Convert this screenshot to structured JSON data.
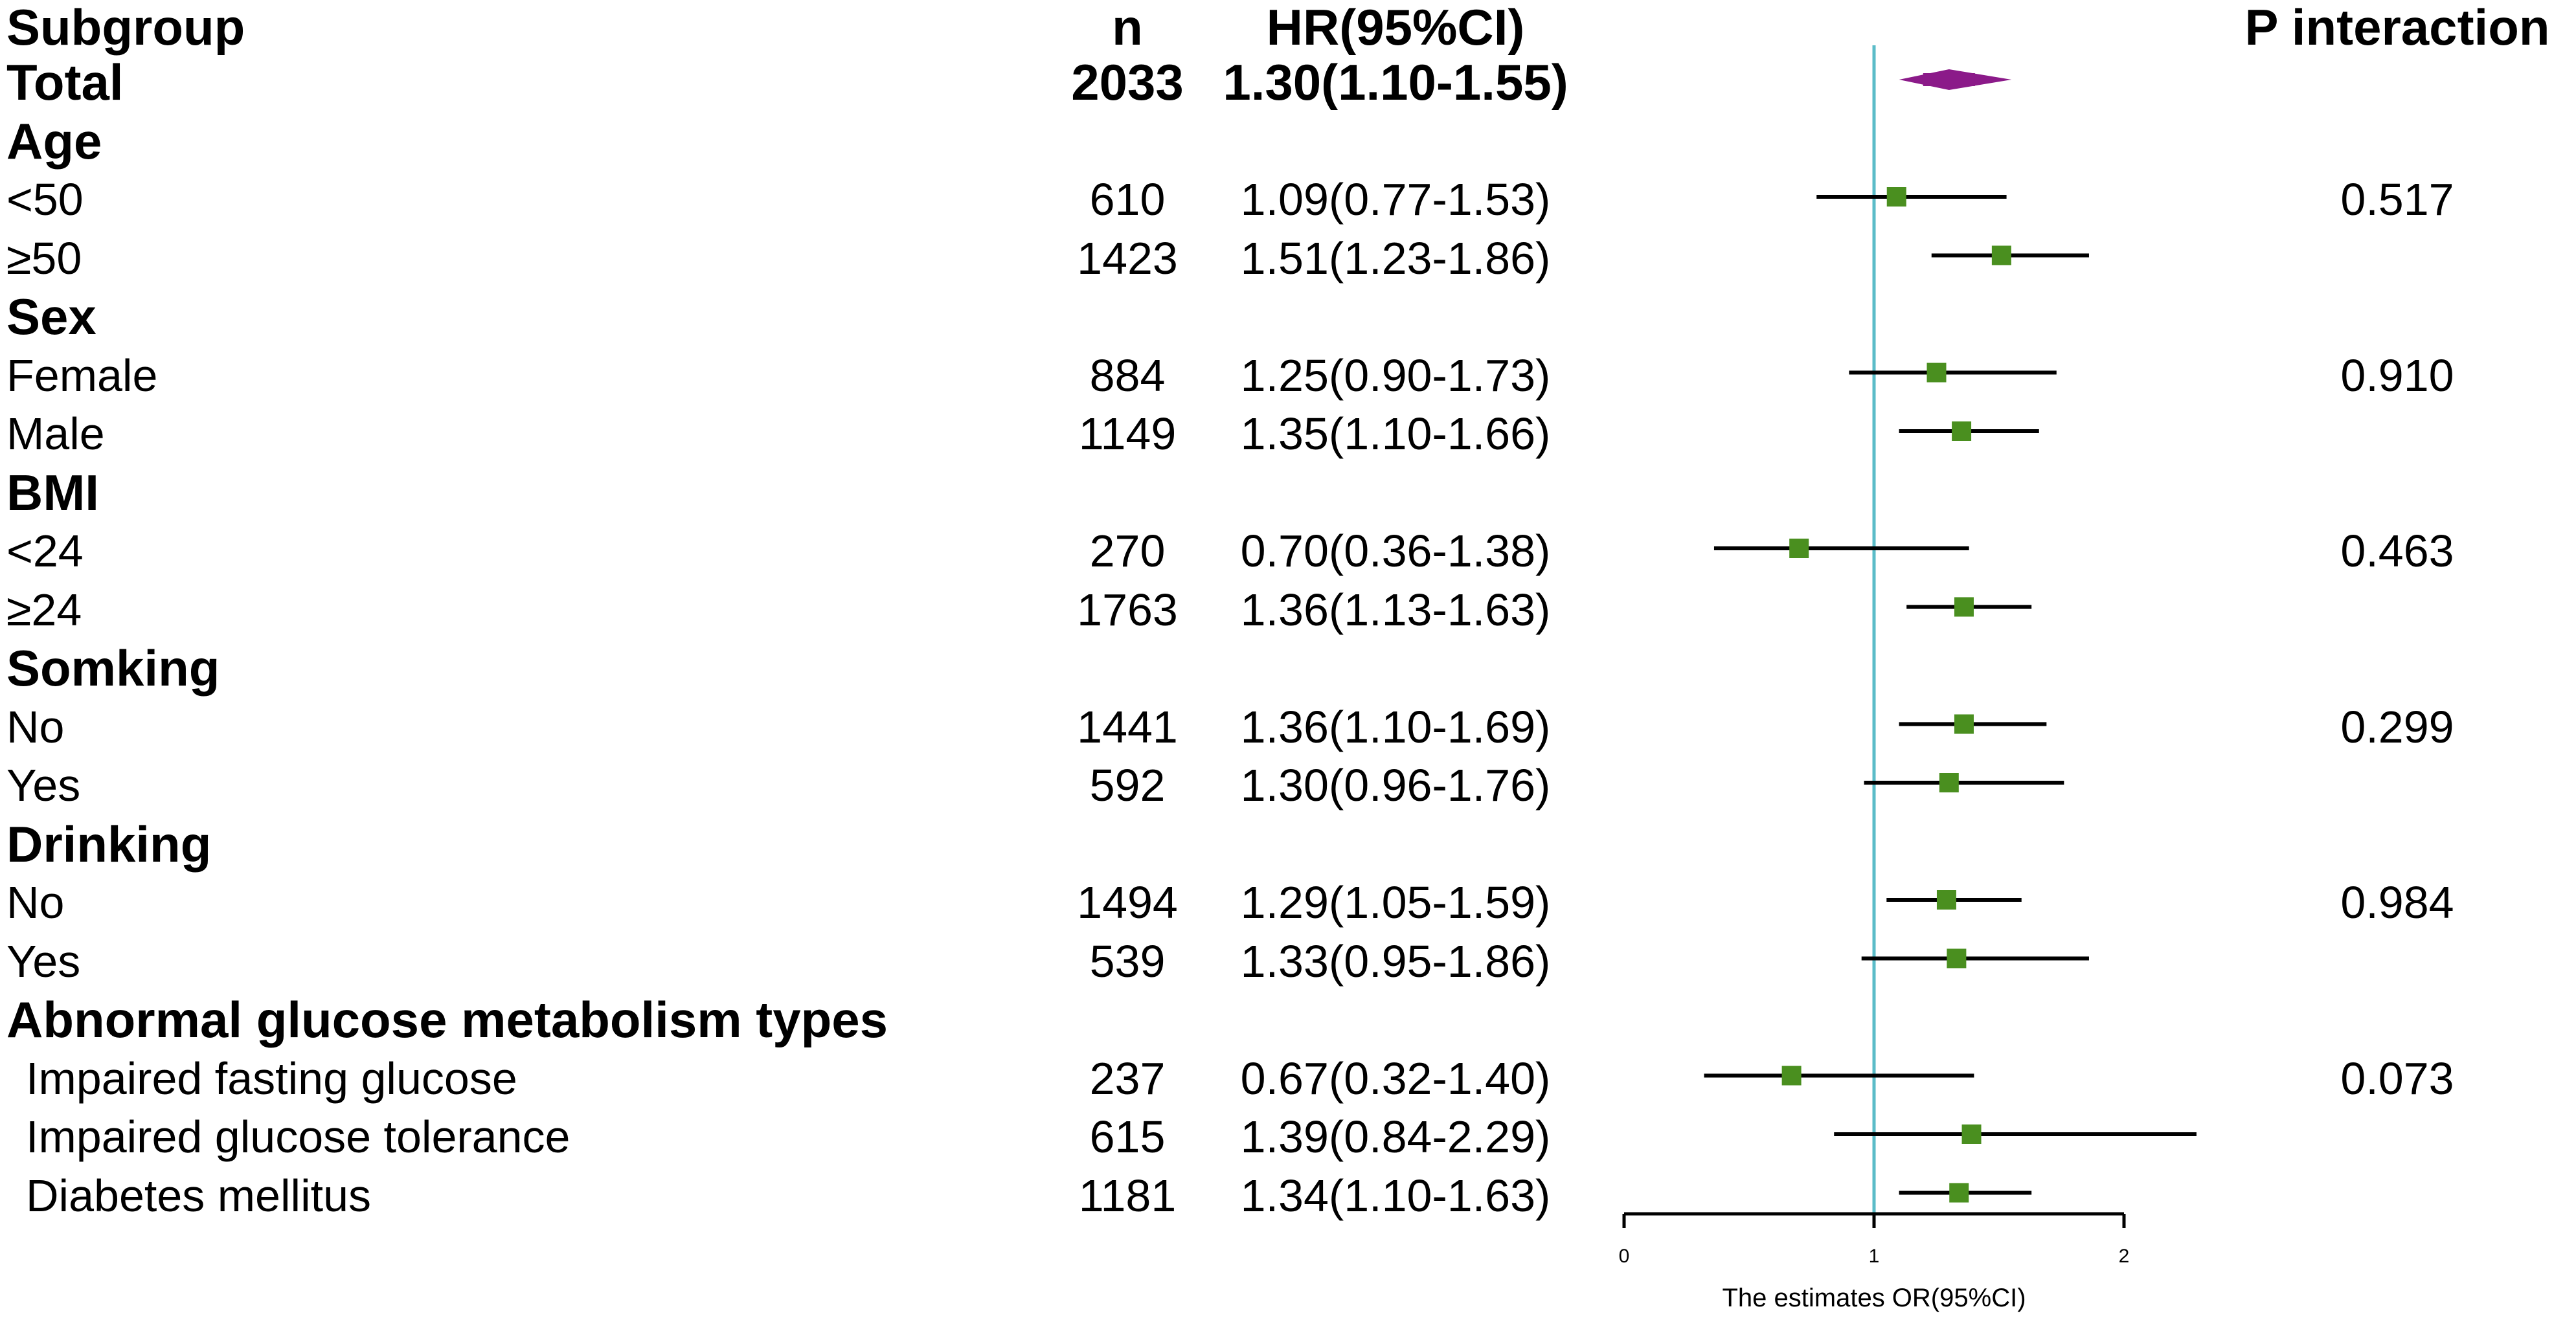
{
  "headers": {
    "subgroup": "Subgroup",
    "n": "n",
    "hr": "HR(95%CI)",
    "p": "P interaction"
  },
  "rows": [
    {
      "label": "Total",
      "kind": "total",
      "n": "2033",
      "hr_text": "1.30(1.10-1.55)",
      "est": 1.3,
      "lo": 1.1,
      "hi": 1.55,
      "p": ""
    },
    {
      "label": "Age",
      "kind": "group",
      "n": "",
      "hr_text": "",
      "p": ""
    },
    {
      "label": "<50",
      "kind": "sub",
      "n": "610",
      "hr_text": "1.09(0.77-1.53)",
      "est": 1.09,
      "lo": 0.77,
      "hi": 1.53,
      "p": "0.517"
    },
    {
      "label": "≥50",
      "kind": "sub",
      "n": "1423",
      "hr_text": "1.51(1.23-1.86)",
      "est": 1.51,
      "lo": 1.23,
      "hi": 1.86,
      "p": ""
    },
    {
      "label": "Sex",
      "kind": "group",
      "n": "",
      "hr_text": "",
      "p": ""
    },
    {
      "label": "Female",
      "kind": "sub",
      "n": "884",
      "hr_text": "1.25(0.90-1.73)",
      "est": 1.25,
      "lo": 0.9,
      "hi": 1.73,
      "p": "0.910"
    },
    {
      "label": "Male",
      "kind": "sub",
      "n": "1149",
      "hr_text": "1.35(1.10-1.66)",
      "est": 1.35,
      "lo": 1.1,
      "hi": 1.66,
      "p": ""
    },
    {
      "label": "BMI",
      "kind": "group",
      "n": "",
      "hr_text": "",
      "p": ""
    },
    {
      "label": "<24",
      "kind": "sub",
      "n": "270",
      "hr_text": "0.70(0.36-1.38)",
      "est": 0.7,
      "lo": 0.36,
      "hi": 1.38,
      "p": "0.463"
    },
    {
      "label": "≥24",
      "kind": "sub",
      "n": "1763",
      "hr_text": "1.36(1.13-1.63)",
      "est": 1.36,
      "lo": 1.13,
      "hi": 1.63,
      "p": ""
    },
    {
      "label": "Somking",
      "kind": "group",
      "n": "",
      "hr_text": "",
      "p": ""
    },
    {
      "label": "No",
      "kind": "sub",
      "n": "1441",
      "hr_text": "1.36(1.10-1.69)",
      "est": 1.36,
      "lo": 1.1,
      "hi": 1.69,
      "p": "0.299"
    },
    {
      "label": "Yes",
      "kind": "sub",
      "n": "592",
      "hr_text": "1.30(0.96-1.76)",
      "est": 1.3,
      "lo": 0.96,
      "hi": 1.76,
      "p": ""
    },
    {
      "label": "Drinking",
      "kind": "group",
      "n": "",
      "hr_text": "",
      "p": ""
    },
    {
      "label": "No",
      "kind": "sub",
      "n": "1494",
      "hr_text": "1.29(1.05-1.59)",
      "est": 1.29,
      "lo": 1.05,
      "hi": 1.59,
      "p": "0.984"
    },
    {
      "label": "Yes",
      "kind": "sub",
      "n": "539",
      "hr_text": "1.33(0.95-1.86)",
      "est": 1.33,
      "lo": 0.95,
      "hi": 1.86,
      "p": ""
    },
    {
      "label": "Abnormal glucose metabolism types",
      "kind": "group",
      "n": "",
      "hr_text": "",
      "p": ""
    },
    {
      "label": "Impaired fasting glucose",
      "kind": "sub",
      "indent": true,
      "n": "237",
      "hr_text": "0.67(0.32-1.40)",
      "est": 0.67,
      "lo": 0.32,
      "hi": 1.4,
      "p": "0.073"
    },
    {
      "label": "Impaired glucose tolerance",
      "kind": "sub",
      "indent": true,
      "n": "615",
      "hr_text": "1.39(0.84-2.29)",
      "est": 1.39,
      "lo": 0.84,
      "hi": 2.29,
      "p": ""
    },
    {
      "label": "Diabetes mellitus",
      "kind": "sub",
      "indent": true,
      "n": "1181",
      "hr_text": "1.34(1.10-1.63)",
      "est": 1.34,
      "lo": 1.1,
      "hi": 1.63,
      "p": ""
    }
  ],
  "chart_data": {
    "type": "forest",
    "xlabel": "The estimates OR(95%CI)",
    "xlim": [
      0,
      2
    ],
    "xticks": [
      0,
      1,
      2
    ],
    "reference_line": 1,
    "colors": {
      "ref_line": "#5bbcc8",
      "marker": "#4a8f1f",
      "total_marker": "#8b1a89",
      "ci_line": "#000000",
      "axis": "#000000"
    }
  }
}
